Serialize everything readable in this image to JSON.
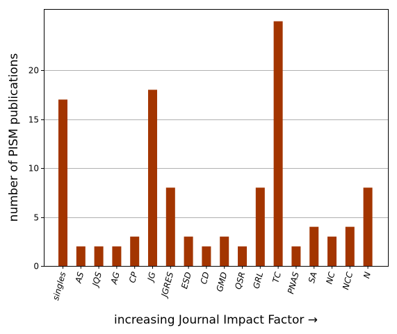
{
  "chart_data": {
    "type": "bar",
    "title": "",
    "xlabel": "increasing Journal Impact Factor →",
    "ylabel": "number of PISM publications",
    "categories": [
      "singles",
      "AS",
      "JQS",
      "AG",
      "CP",
      "JG",
      "JGRES",
      "ESD",
      "CD",
      "GMD",
      "QSR",
      "GRL",
      "TC",
      "PNAS",
      "SA",
      "NC",
      "NCC",
      "N"
    ],
    "values": [
      17,
      2,
      2,
      2,
      3,
      18,
      8,
      3,
      2,
      3,
      2,
      8,
      25,
      2,
      4,
      3,
      4,
      8
    ],
    "ylim": [
      0,
      26.25
    ],
    "yticks": [
      0,
      5,
      10,
      15,
      20
    ],
    "grid": "y",
    "bar_color": "#a33500",
    "category_style": "italic",
    "category_rotation": 75
  }
}
